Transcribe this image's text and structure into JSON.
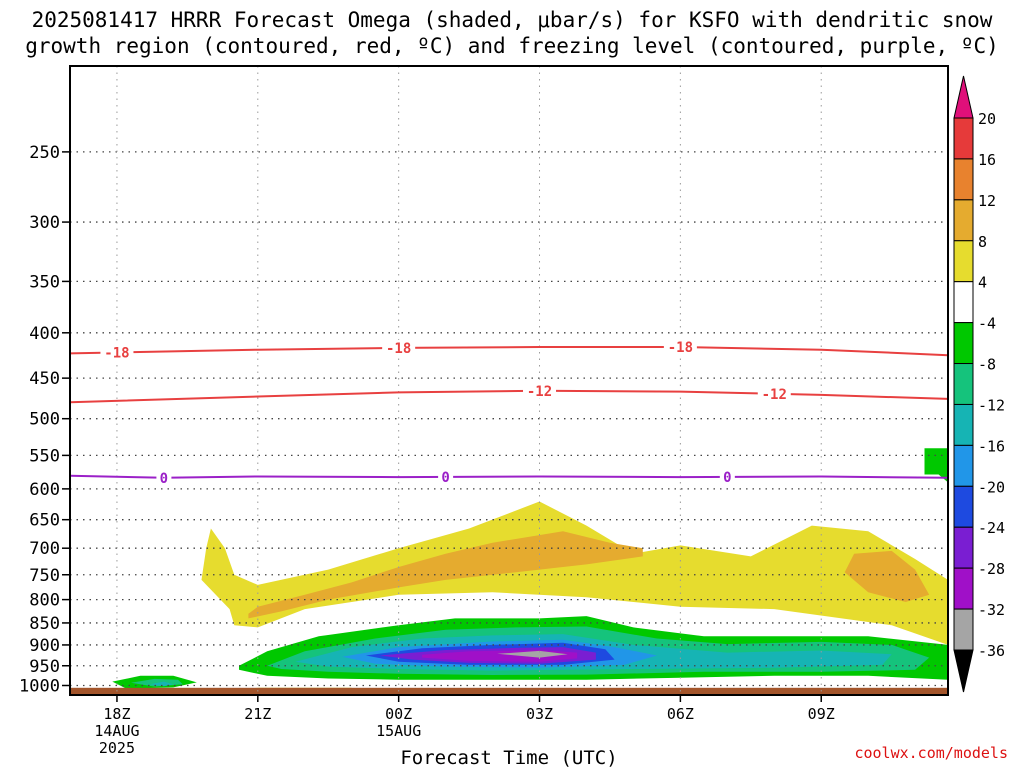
{
  "title_line1": "2025081417 HRRR Forecast Omega (shaded, μbar/s) for KSFO with dendritic snow",
  "title_line2": "growth region (contoured, red, ºC) and freezing level (contoured, purple, ºC)",
  "credit": "coolwx.com/models",
  "chart_data": {
    "type": "heatmap",
    "xlabel": "Forecast Time (UTC)",
    "ylabel": "",
    "x_ticks": [
      {
        "hour": 0,
        "lines": [
          "18Z",
          "14AUG",
          "2025"
        ]
      },
      {
        "hour": 3,
        "lines": [
          "21Z"
        ]
      },
      {
        "hour": 6,
        "lines": [
          "00Z",
          "15AUG"
        ]
      },
      {
        "hour": 9,
        "lines": [
          "03Z"
        ]
      },
      {
        "hour": 12,
        "lines": [
          "06Z"
        ]
      },
      {
        "hour": 15,
        "lines": [
          "09Z"
        ]
      }
    ],
    "x_range_hours": [
      -1,
      17.7
    ],
    "y_ticks": [
      250,
      300,
      350,
      400,
      450,
      500,
      550,
      600,
      650,
      700,
      750,
      800,
      850,
      900,
      950,
      1000
    ],
    "y_range_hPa": [
      200,
      1025
    ],
    "y_scale": "log",
    "y_reversed": true,
    "grid": true,
    "colorbar": {
      "labels": [
        "20",
        "16",
        "12",
        "8",
        "4",
        "-4",
        "-8",
        "-12",
        "-16",
        "-20",
        "-24",
        "-28",
        "-32",
        "-36"
      ],
      "colors": [
        "#e63a3a",
        "#e8822e",
        "#e5ab2f",
        "#e6dc2e",
        "#ffffff",
        "#00c800",
        "#15c37c",
        "#16b4b4",
        "#2196e8",
        "#1e4ae0",
        "#7a1ed2",
        "#a010c8",
        "#a5a5a5"
      ],
      "top_arrow_color": "#e0107a",
      "bottom_arrow_color": "#000000"
    },
    "contours": [
      {
        "label": "-18",
        "color": "#e84040",
        "label_hours": [
          0,
          6,
          12
        ],
        "points": [
          [
            -1,
            422
          ],
          [
            3,
            418
          ],
          [
            6,
            416
          ],
          [
            9,
            415
          ],
          [
            12,
            415
          ],
          [
            15,
            418
          ],
          [
            17.7,
            424
          ]
        ]
      },
      {
        "label": "-12",
        "color": "#e84040",
        "label_hours": [
          9,
          14
        ],
        "points": [
          [
            -1,
            479
          ],
          [
            3,
            472
          ],
          [
            6,
            467
          ],
          [
            9,
            465
          ],
          [
            12,
            466
          ],
          [
            15,
            470
          ],
          [
            17.7,
            475
          ]
        ]
      },
      {
        "label": "0",
        "color": "#9b20c8",
        "label_hours": [
          1,
          7,
          13
        ],
        "points": [
          [
            -1,
            580
          ],
          [
            1,
            583
          ],
          [
            3,
            581
          ],
          [
            6,
            582
          ],
          [
            9,
            581
          ],
          [
            12,
            582
          ],
          [
            15,
            581
          ],
          [
            17.7,
            583
          ]
        ]
      }
    ],
    "shaded_regions": [
      {
        "value": "4 to 8",
        "color": "#e6dc2e",
        "points": [
          [
            1.8,
            760
          ],
          [
            1.9,
            700
          ],
          [
            2.0,
            665
          ],
          [
            2.3,
            700
          ],
          [
            2.5,
            750
          ],
          [
            3.0,
            770
          ],
          [
            4.5,
            740
          ],
          [
            6,
            700
          ],
          [
            7.5,
            665
          ],
          [
            9,
            620
          ],
          [
            10,
            660
          ],
          [
            11,
            710
          ],
          [
            12,
            695
          ],
          [
            13.5,
            715
          ],
          [
            14.8,
            660
          ],
          [
            16,
            670
          ],
          [
            17,
            720
          ],
          [
            17.7,
            760
          ],
          [
            17.7,
            900
          ],
          [
            16.5,
            855
          ],
          [
            14,
            820
          ],
          [
            12,
            815
          ],
          [
            10,
            795
          ],
          [
            8,
            785
          ],
          [
            6,
            790
          ],
          [
            4,
            820
          ],
          [
            3,
            860
          ],
          [
            2.5,
            855
          ],
          [
            2.4,
            820
          ],
          [
            1.8,
            760
          ]
        ]
      },
      {
        "value": "8 to 12",
        "color": "#e5ab2f",
        "points": [
          [
            2.8,
            830
          ],
          [
            3,
            815
          ],
          [
            4,
            790
          ],
          [
            5,
            765
          ],
          [
            6,
            735
          ],
          [
            7,
            710
          ],
          [
            8,
            690
          ],
          [
            9.5,
            670
          ],
          [
            10.5,
            690
          ],
          [
            11.2,
            700
          ],
          [
            11.2,
            715
          ],
          [
            10,
            730
          ],
          [
            8.5,
            745
          ],
          [
            7,
            760
          ],
          [
            6,
            775
          ],
          [
            4.5,
            800
          ],
          [
            3.5,
            825
          ],
          [
            2.8,
            840
          ],
          [
            2.8,
            830
          ]
        ]
      },
      {
        "value": "8 to 12",
        "color": "#e5ab2f",
        "points": [
          [
            15.5,
            745
          ],
          [
            15.7,
            710
          ],
          [
            16.5,
            705
          ],
          [
            17,
            740
          ],
          [
            17.3,
            790
          ],
          [
            16.8,
            805
          ],
          [
            16,
            785
          ],
          [
            15.5,
            745
          ]
        ]
      },
      {
        "value": "4 to 8",
        "color": "#e6dc2e",
        "points": [
          [
            2.6,
            1010
          ],
          [
            3,
            1006
          ],
          [
            5,
            1006
          ],
          [
            5,
            1012
          ],
          [
            2.6,
            1012
          ]
        ]
      },
      {
        "value": "-4 to -8",
        "color": "#00c800",
        "points": [
          [
            2.6,
            950
          ],
          [
            3.2,
            915
          ],
          [
            4.3,
            880
          ],
          [
            6,
            855
          ],
          [
            7.2,
            840
          ],
          [
            9,
            840
          ],
          [
            10,
            835
          ],
          [
            11,
            860
          ],
          [
            12.5,
            880
          ],
          [
            14.5,
            880
          ],
          [
            16,
            880
          ],
          [
            17.7,
            900
          ],
          [
            17.7,
            985
          ],
          [
            16,
            975
          ],
          [
            14,
            975
          ],
          [
            12,
            980
          ],
          [
            10,
            985
          ],
          [
            8,
            985
          ],
          [
            6,
            985
          ],
          [
            4.5,
            982
          ],
          [
            3.2,
            975
          ],
          [
            2.6,
            960
          ],
          [
            2.6,
            950
          ]
        ]
      },
      {
        "value": "-8 to -12",
        "color": "#15c37c",
        "points": [
          [
            3.2,
            950
          ],
          [
            4,
            915
          ],
          [
            5.5,
            885
          ],
          [
            7,
            865
          ],
          [
            8.5,
            860
          ],
          [
            10,
            858
          ],
          [
            11.5,
            885
          ],
          [
            13,
            898
          ],
          [
            15,
            893
          ],
          [
            16.5,
            900
          ],
          [
            17.3,
            930
          ],
          [
            17,
            960
          ],
          [
            15,
            965
          ],
          [
            12.5,
            965
          ],
          [
            10,
            972
          ],
          [
            8,
            973
          ],
          [
            6,
            970
          ],
          [
            4.5,
            965
          ],
          [
            3.5,
            958
          ],
          [
            3.2,
            950
          ]
        ]
      },
      {
        "value": "-12 to -16",
        "color": "#16b4b4",
        "points": [
          [
            3.8,
            940
          ],
          [
            5,
            905
          ],
          [
            6.5,
            885
          ],
          [
            8,
            878
          ],
          [
            9.5,
            875
          ],
          [
            11,
            900
          ],
          [
            13,
            918
          ],
          [
            15,
            913
          ],
          [
            16.5,
            922
          ],
          [
            16.3,
            948
          ],
          [
            14,
            955
          ],
          [
            11,
            958
          ],
          [
            8,
            962
          ],
          [
            6,
            958
          ],
          [
            4.5,
            952
          ],
          [
            3.8,
            940
          ]
        ]
      },
      {
        "value": "-16 to -20",
        "color": "#2196e8",
        "points": [
          [
            4.8,
            928
          ],
          [
            6,
            905
          ],
          [
            8,
            892
          ],
          [
            9.5,
            888
          ],
          [
            10.6,
            905
          ],
          [
            11.5,
            925
          ],
          [
            10.8,
            948
          ],
          [
            9,
            955
          ],
          [
            7,
            952
          ],
          [
            5.5,
            945
          ],
          [
            4.8,
            928
          ]
        ]
      },
      {
        "value": "-20 to -24",
        "color": "#1e4ae0",
        "points": [
          [
            5.3,
            925
          ],
          [
            6.5,
            908
          ],
          [
            8,
            900
          ],
          [
            9.5,
            895
          ],
          [
            10.4,
            910
          ],
          [
            10.6,
            935
          ],
          [
            9.5,
            948
          ],
          [
            7.5,
            948
          ],
          [
            6,
            940
          ],
          [
            5.3,
            925
          ]
        ]
      },
      {
        "value": "-24 to -28",
        "color": "#7a1ed2",
        "points": [
          [
            5.6,
            925
          ],
          [
            7,
            912
          ],
          [
            8.5,
            907
          ],
          [
            9.5,
            905
          ],
          [
            10.2,
            918
          ],
          [
            10.2,
            935
          ],
          [
            9,
            945
          ],
          [
            7.5,
            943
          ],
          [
            6.3,
            935
          ],
          [
            5.6,
            925
          ]
        ]
      },
      {
        "value": "-28 to -32",
        "color": "#a010c8",
        "points": [
          [
            6.5,
            923
          ],
          [
            7.5,
            915
          ],
          [
            9,
            912
          ],
          [
            9.8,
            918
          ],
          [
            9.8,
            932
          ],
          [
            9,
            940
          ],
          [
            7.5,
            938
          ],
          [
            6.5,
            930
          ],
          [
            6.5,
            923
          ]
        ]
      },
      {
        "value": "-32 to -36",
        "color": "#a5a5a5",
        "points": [
          [
            8.1,
            921
          ],
          [
            9,
            914
          ],
          [
            9.6,
            922
          ],
          [
            9,
            930
          ],
          [
            8.1,
            921
          ]
        ]
      },
      {
        "value": "-4 to -8",
        "color": "#00c800",
        "points": [
          [
            -0.1,
            990
          ],
          [
            0.5,
            975
          ],
          [
            1.2,
            975
          ],
          [
            1.7,
            992
          ],
          [
            1.2,
            1005
          ],
          [
            0.2,
            1008
          ],
          [
            -0.1,
            990
          ]
        ]
      },
      {
        "value": "-8 to -12",
        "color": "#15c37c",
        "points": [
          [
            0.3,
            993
          ],
          [
            0.8,
            983
          ],
          [
            1.3,
            985
          ],
          [
            1.4,
            997
          ],
          [
            0.8,
            1003
          ],
          [
            0.3,
            993
          ]
        ]
      },
      {
        "value": "-12 to -16",
        "color": "#16b4b4",
        "points": [
          [
            0.7,
            997
          ],
          [
            1.0,
            990
          ],
          [
            1.2,
            997
          ],
          [
            1.0,
            1002
          ],
          [
            0.7,
            997
          ]
        ]
      },
      {
        "value": "-4 to -8",
        "color": "#00c800",
        "points": [
          [
            17.2,
            540
          ],
          [
            17.7,
            540
          ],
          [
            17.7,
            590
          ],
          [
            17.5,
            578
          ],
          [
            17.2,
            578
          ],
          [
            17.2,
            540
          ]
        ]
      }
    ],
    "terrain_color": "#a3552b",
    "terrain_top_hPa": 1006
  }
}
